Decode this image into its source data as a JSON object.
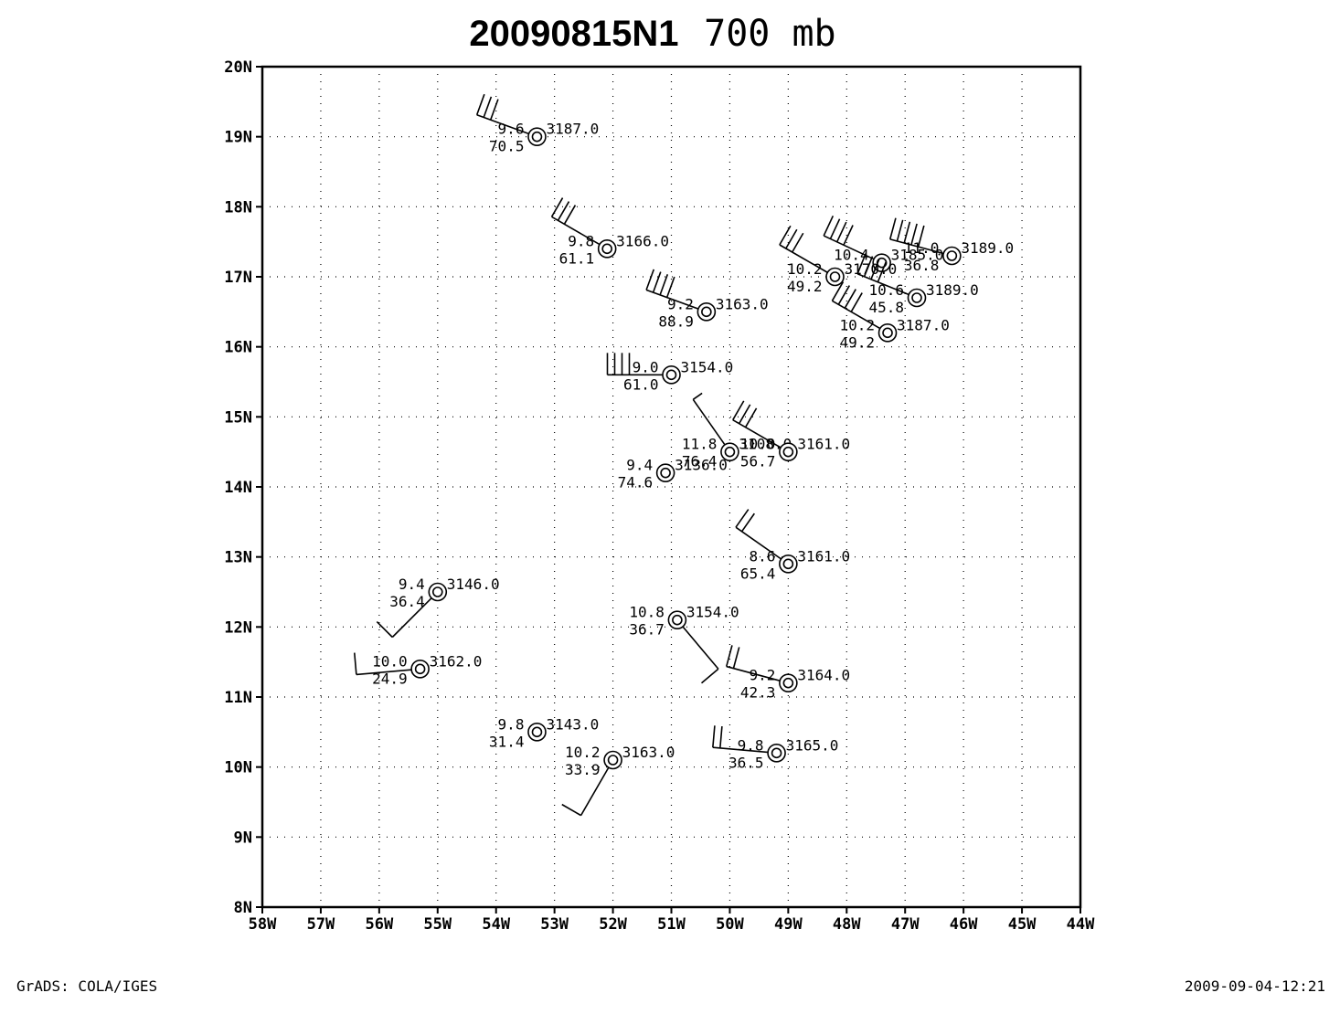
{
  "title": {
    "id": "20090815N1",
    "level": "700 mb"
  },
  "footer": {
    "left": "GrADS: COLA/IGES",
    "right": "2009-09-04-12:21"
  },
  "chart_data": {
    "type": "station-model",
    "xlim": [
      -58,
      -44
    ],
    "ylim": [
      8,
      20
    ],
    "grid": "dotted",
    "x_ticks": [
      "58W",
      "57W",
      "56W",
      "55W",
      "54W",
      "53W",
      "52W",
      "51W",
      "50W",
      "49W",
      "48W",
      "47W",
      "46W",
      "45W",
      "44W"
    ],
    "y_ticks": [
      "8N",
      "9N",
      "10N",
      "11N",
      "12N",
      "13N",
      "14N",
      "15N",
      "16N",
      "17N",
      "18N",
      "19N",
      "20N"
    ],
    "stations": [
      {
        "lon": -53.3,
        "lat": 19.0,
        "top_left": "9.6",
        "bottom_left": "70.5",
        "top_right": "3187.0",
        "barb": {
          "dir_deg": 290,
          "full": 3,
          "half": 0
        }
      },
      {
        "lon": -52.1,
        "lat": 17.4,
        "top_left": "9.8",
        "bottom_left": "61.1",
        "top_right": "3166.0",
        "barb": {
          "dir_deg": 300,
          "full": 3,
          "half": 0
        }
      },
      {
        "lon": -50.4,
        "lat": 16.5,
        "top_left": "9.2",
        "bottom_left": "88.9",
        "top_right": "3163.0",
        "barb": {
          "dir_deg": 290,
          "full": 4,
          "half": 0
        }
      },
      {
        "lon": -51.0,
        "lat": 15.6,
        "top_left": "9.0",
        "bottom_left": "61.0",
        "top_right": "3154.0",
        "barb": {
          "dir_deg": 270,
          "full": 4,
          "half": 0
        }
      },
      {
        "lon": -47.4,
        "lat": 17.2,
        "top_left": "10.4",
        "bottom_left": "",
        "top_right": "3185.0",
        "barb": {
          "dir_deg": 295,
          "full": 4,
          "half": 0
        }
      },
      {
        "lon": -46.2,
        "lat": 17.3,
        "top_left": "11.0",
        "bottom_left": "36.8",
        "top_right": "3189.0",
        "barb": {
          "dir_deg": 285,
          "full": 5,
          "half": 0
        }
      },
      {
        "lon": -48.2,
        "lat": 17.0,
        "top_left": "10.2",
        "bottom_left": "49.2",
        "top_right": "3170.0",
        "barb": {
          "dir_deg": 300,
          "full": 3,
          "half": 0
        }
      },
      {
        "lon": -46.8,
        "lat": 16.7,
        "top_left": "10.6",
        "bottom_left": "45.8",
        "top_right": "3189.0",
        "barb": {
          "dir_deg": 292,
          "full": 4,
          "half": 0
        }
      },
      {
        "lon": -47.3,
        "lat": 16.2,
        "top_left": "10.2",
        "bottom_left": "49.2",
        "top_right": "3187.0",
        "barb": {
          "dir_deg": 300,
          "full": 4,
          "half": 0
        }
      },
      {
        "lon": -50.0,
        "lat": 14.5,
        "top_left": "11.8",
        "bottom_left": "76.4",
        "top_right": "3108.0",
        "barb": {
          "dir_deg": 325,
          "full": 0,
          "half": 1
        }
      },
      {
        "lon": -49.0,
        "lat": 14.5,
        "top_left": "10.0",
        "bottom_left": "56.7",
        "top_right": "3161.0",
        "barb": {
          "dir_deg": 300,
          "full": 3,
          "half": 0
        }
      },
      {
        "lon": -51.1,
        "lat": 14.2,
        "top_left": "9.4",
        "bottom_left": "74.6",
        "top_right": "3136.0",
        "barb": null
      },
      {
        "lon": -49.0,
        "lat": 12.9,
        "top_left": "8.6",
        "bottom_left": "65.4",
        "top_right": "3161.0",
        "barb": {
          "dir_deg": 305,
          "full": 2,
          "half": 0
        }
      },
      {
        "lon": -55.0,
        "lat": 12.5,
        "top_left": "9.4",
        "bottom_left": "36.4",
        "top_right": "3146.0",
        "barb": {
          "dir_deg": 225,
          "full": 1,
          "half": 0
        }
      },
      {
        "lon": -50.9,
        "lat": 12.1,
        "top_left": "10.8",
        "bottom_left": "36.7",
        "top_right": "3154.0",
        "barb": {
          "dir_deg": 140,
          "full": 1,
          "half": 0
        }
      },
      {
        "lon": -55.3,
        "lat": 11.4,
        "top_left": "10.0",
        "bottom_left": "24.9",
        "top_right": "3162.0",
        "barb": {
          "dir_deg": 265,
          "full": 1,
          "half": 0
        }
      },
      {
        "lon": -49.0,
        "lat": 11.2,
        "top_left": "9.2",
        "bottom_left": "42.3",
        "top_right": "3164.0",
        "barb": {
          "dir_deg": 285,
          "full": 2,
          "half": 0
        }
      },
      {
        "lon": -53.3,
        "lat": 10.5,
        "top_left": "9.8",
        "bottom_left": "31.4",
        "top_right": "3143.0",
        "barb": null
      },
      {
        "lon": -52.0,
        "lat": 10.1,
        "top_left": "10.2",
        "bottom_left": "33.9",
        "top_right": "3163.0",
        "barb": {
          "dir_deg": 210,
          "full": 1,
          "half": 0
        }
      },
      {
        "lon": -49.2,
        "lat": 10.2,
        "top_left": "9.8",
        "bottom_left": "36.5",
        "top_right": "3165.0",
        "barb": {
          "dir_deg": 275,
          "full": 2,
          "half": 0
        }
      }
    ]
  }
}
